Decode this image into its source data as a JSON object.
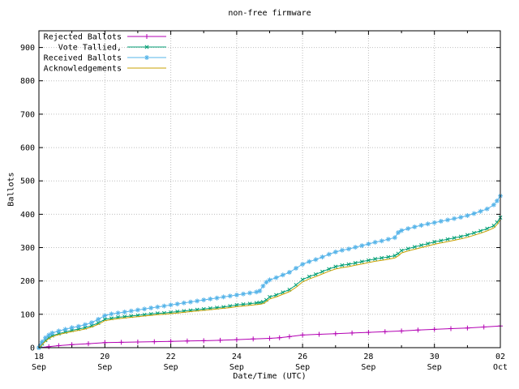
{
  "chart_data": {
    "type": "line",
    "title": "non-free firmware",
    "xlabel": "Date/Time (UTC)",
    "ylabel": "Ballots",
    "grid": true,
    "legend_position": "top-left",
    "xlim": [
      0,
      14
    ],
    "ylim": [
      0,
      950
    ],
    "y_ticks": [
      0,
      100,
      200,
      300,
      400,
      500,
      600,
      700,
      800,
      900
    ],
    "x_ticks": [
      {
        "t": 0,
        "day": "18",
        "month": "Sep"
      },
      {
        "t": 2,
        "day": "20",
        "month": "Sep"
      },
      {
        "t": 4,
        "day": "22",
        "month": "Sep"
      },
      {
        "t": 6,
        "day": "24",
        "month": "Sep"
      },
      {
        "t": 8,
        "day": "26",
        "month": "Sep"
      },
      {
        "t": 10,
        "day": "28",
        "month": "Sep"
      },
      {
        "t": 12,
        "day": "30",
        "month": "Sep"
      },
      {
        "t": 14,
        "day": "02",
        "month": "Oct"
      }
    ],
    "x_minor_ticks": [
      1,
      3,
      5,
      7,
      9,
      11,
      13
    ],
    "axis_color": "#000000",
    "grid_color": "#bebebe",
    "series": [
      {
        "name": "Rejected Ballots",
        "color": "#b300b3",
        "marker": "plus",
        "points": [
          [
            0,
            0
          ],
          [
            0.3,
            3
          ],
          [
            0.6,
            6
          ],
          [
            1,
            9
          ],
          [
            1.5,
            12
          ],
          [
            2,
            15
          ],
          [
            2.5,
            16
          ],
          [
            3,
            17
          ],
          [
            3.5,
            18
          ],
          [
            4,
            19
          ],
          [
            4.5,
            20
          ],
          [
            5,
            21
          ],
          [
            5.5,
            22
          ],
          [
            6,
            24
          ],
          [
            6.5,
            26
          ],
          [
            7,
            28
          ],
          [
            7.3,
            30
          ],
          [
            7.6,
            33
          ],
          [
            8,
            38
          ],
          [
            8.5,
            40
          ],
          [
            9,
            42
          ],
          [
            9.5,
            44
          ],
          [
            10,
            46
          ],
          [
            10.5,
            48
          ],
          [
            11,
            50
          ],
          [
            11.5,
            53
          ],
          [
            12,
            55
          ],
          [
            12.5,
            57
          ],
          [
            13,
            59
          ],
          [
            13.5,
            62
          ],
          [
            14,
            65
          ]
        ]
      },
      {
        "name": "Vote Tallied,",
        "color": "#009e73",
        "marker": "cross",
        "points": [
          [
            0,
            0
          ],
          [
            0.05,
            5
          ],
          [
            0.1,
            12
          ],
          [
            0.2,
            22
          ],
          [
            0.3,
            30
          ],
          [
            0.4,
            36
          ],
          [
            0.6,
            42
          ],
          [
            0.8,
            47
          ],
          [
            1,
            52
          ],
          [
            1.2,
            56
          ],
          [
            1.4,
            60
          ],
          [
            1.6,
            66
          ],
          [
            1.8,
            74
          ],
          [
            2,
            85
          ],
          [
            2.2,
            88
          ],
          [
            2.4,
            91
          ],
          [
            2.6,
            93
          ],
          [
            2.8,
            95
          ],
          [
            3,
            97
          ],
          [
            3.2,
            99
          ],
          [
            3.4,
            101
          ],
          [
            3.6,
            103
          ],
          [
            3.8,
            104
          ],
          [
            4,
            106
          ],
          [
            4.2,
            108
          ],
          [
            4.4,
            110
          ],
          [
            4.6,
            112
          ],
          [
            4.8,
            114
          ],
          [
            5,
            116
          ],
          [
            5.2,
            118
          ],
          [
            5.4,
            120
          ],
          [
            5.6,
            122
          ],
          [
            5.8,
            125
          ],
          [
            6,
            128
          ],
          [
            6.2,
            130
          ],
          [
            6.4,
            132
          ],
          [
            6.6,
            134
          ],
          [
            6.7,
            135
          ],
          [
            6.8,
            137
          ],
          [
            6.9,
            143
          ],
          [
            7,
            152
          ],
          [
            7.2,
            158
          ],
          [
            7.4,
            166
          ],
          [
            7.6,
            174
          ],
          [
            7.8,
            188
          ],
          [
            8,
            204
          ],
          [
            8.2,
            213
          ],
          [
            8.4,
            220
          ],
          [
            8.6,
            228
          ],
          [
            8.8,
            236
          ],
          [
            9,
            243
          ],
          [
            9.2,
            247
          ],
          [
            9.4,
            250
          ],
          [
            9.6,
            254
          ],
          [
            9.8,
            258
          ],
          [
            10,
            262
          ],
          [
            10.2,
            266
          ],
          [
            10.4,
            269
          ],
          [
            10.6,
            272
          ],
          [
            10.8,
            276
          ],
          [
            10.9,
            282
          ],
          [
            11,
            291
          ],
          [
            11.2,
            297
          ],
          [
            11.4,
            302
          ],
          [
            11.6,
            307
          ],
          [
            11.8,
            312
          ],
          [
            12,
            317
          ],
          [
            12.2,
            321
          ],
          [
            12.4,
            325
          ],
          [
            12.6,
            329
          ],
          [
            12.8,
            333
          ],
          [
            13,
            338
          ],
          [
            13.2,
            344
          ],
          [
            13.4,
            350
          ],
          [
            13.6,
            357
          ],
          [
            13.8,
            366
          ],
          [
            13.9,
            376
          ],
          [
            14,
            390
          ]
        ]
      },
      {
        "name": "Received Ballots",
        "color": "#56b4e9",
        "marker": "star",
        "points": [
          [
            0,
            0
          ],
          [
            0.05,
            8
          ],
          [
            0.1,
            18
          ],
          [
            0.2,
            30
          ],
          [
            0.3,
            38
          ],
          [
            0.4,
            44
          ],
          [
            0.6,
            50
          ],
          [
            0.8,
            55
          ],
          [
            1,
            60
          ],
          [
            1.2,
            64
          ],
          [
            1.4,
            69
          ],
          [
            1.6,
            75
          ],
          [
            1.8,
            85
          ],
          [
            2,
            96
          ],
          [
            2.2,
            101
          ],
          [
            2.4,
            104
          ],
          [
            2.6,
            107
          ],
          [
            2.8,
            110
          ],
          [
            3,
            113
          ],
          [
            3.2,
            116
          ],
          [
            3.4,
            119
          ],
          [
            3.6,
            122
          ],
          [
            3.8,
            125
          ],
          [
            4,
            128
          ],
          [
            4.2,
            131
          ],
          [
            4.4,
            134
          ],
          [
            4.6,
            137
          ],
          [
            4.8,
            140
          ],
          [
            5,
            143
          ],
          [
            5.2,
            146
          ],
          [
            5.4,
            149
          ],
          [
            5.6,
            152
          ],
          [
            5.8,
            155
          ],
          [
            6,
            158
          ],
          [
            6.2,
            161
          ],
          [
            6.4,
            164
          ],
          [
            6.6,
            167
          ],
          [
            6.7,
            170
          ],
          [
            6.8,
            185
          ],
          [
            6.9,
            196
          ],
          [
            7,
            203
          ],
          [
            7.2,
            210
          ],
          [
            7.4,
            218
          ],
          [
            7.6,
            226
          ],
          [
            7.8,
            238
          ],
          [
            8,
            250
          ],
          [
            8.2,
            258
          ],
          [
            8.4,
            264
          ],
          [
            8.6,
            272
          ],
          [
            8.8,
            280
          ],
          [
            9,
            287
          ],
          [
            9.2,
            292
          ],
          [
            9.4,
            296
          ],
          [
            9.6,
            301
          ],
          [
            9.8,
            306
          ],
          [
            10,
            311
          ],
          [
            10.2,
            316
          ],
          [
            10.4,
            320
          ],
          [
            10.6,
            325
          ],
          [
            10.8,
            330
          ],
          [
            10.9,
            345
          ],
          [
            11,
            351
          ],
          [
            11.2,
            357
          ],
          [
            11.4,
            362
          ],
          [
            11.6,
            367
          ],
          [
            11.8,
            371
          ],
          [
            12,
            375
          ],
          [
            12.2,
            379
          ],
          [
            12.4,
            383
          ],
          [
            12.6,
            387
          ],
          [
            12.8,
            391
          ],
          [
            13,
            396
          ],
          [
            13.2,
            402
          ],
          [
            13.4,
            409
          ],
          [
            13.6,
            416
          ],
          [
            13.8,
            428
          ],
          [
            13.9,
            440
          ],
          [
            14,
            455
          ]
        ]
      },
      {
        "name": "Acknowledgements",
        "color": "#c8a000",
        "marker": "none",
        "points": [
          [
            0,
            0
          ],
          [
            0.05,
            4
          ],
          [
            0.1,
            10
          ],
          [
            0.2,
            19
          ],
          [
            0.3,
            27
          ],
          [
            0.4,
            33
          ],
          [
            0.6,
            39
          ],
          [
            0.8,
            44
          ],
          [
            1,
            48
          ],
          [
            1.2,
            52
          ],
          [
            1.4,
            56
          ],
          [
            1.6,
            62
          ],
          [
            1.8,
            70
          ],
          [
            2,
            81
          ],
          [
            2.2,
            84
          ],
          [
            2.4,
            87
          ],
          [
            2.6,
            89
          ],
          [
            2.8,
            91
          ],
          [
            3,
            93
          ],
          [
            3.2,
            95
          ],
          [
            3.4,
            97
          ],
          [
            3.6,
            99
          ],
          [
            3.8,
            100
          ],
          [
            4,
            102
          ],
          [
            4.2,
            104
          ],
          [
            4.4,
            106
          ],
          [
            4.6,
            108
          ],
          [
            4.8,
            110
          ],
          [
            5,
            112
          ],
          [
            5.2,
            114
          ],
          [
            5.4,
            116
          ],
          [
            5.6,
            118
          ],
          [
            5.8,
            120
          ],
          [
            6,
            123
          ],
          [
            6.2,
            125
          ],
          [
            6.4,
            127
          ],
          [
            6.6,
            129
          ],
          [
            6.7,
            130
          ],
          [
            6.8,
            132
          ],
          [
            6.9,
            138
          ],
          [
            7,
            146
          ],
          [
            7.2,
            152
          ],
          [
            7.4,
            160
          ],
          [
            7.6,
            168
          ],
          [
            7.8,
            181
          ],
          [
            8,
            197
          ],
          [
            8.2,
            206
          ],
          [
            8.4,
            213
          ],
          [
            8.6,
            221
          ],
          [
            8.8,
            229
          ],
          [
            9,
            236
          ],
          [
            9.2,
            240
          ],
          [
            9.4,
            243
          ],
          [
            9.6,
            247
          ],
          [
            9.8,
            251
          ],
          [
            10,
            255
          ],
          [
            10.2,
            259
          ],
          [
            10.4,
            262
          ],
          [
            10.6,
            265
          ],
          [
            10.8,
            269
          ],
          [
            10.9,
            275
          ],
          [
            11,
            284
          ],
          [
            11.2,
            290
          ],
          [
            11.4,
            295
          ],
          [
            11.6,
            300
          ],
          [
            11.8,
            305
          ],
          [
            12,
            310
          ],
          [
            12.2,
            314
          ],
          [
            12.4,
            318
          ],
          [
            12.6,
            322
          ],
          [
            12.8,
            326
          ],
          [
            13,
            331
          ],
          [
            13.2,
            337
          ],
          [
            13.4,
            343
          ],
          [
            13.6,
            350
          ],
          [
            13.8,
            359
          ],
          [
            13.9,
            369
          ],
          [
            14,
            384
          ]
        ]
      }
    ]
  }
}
